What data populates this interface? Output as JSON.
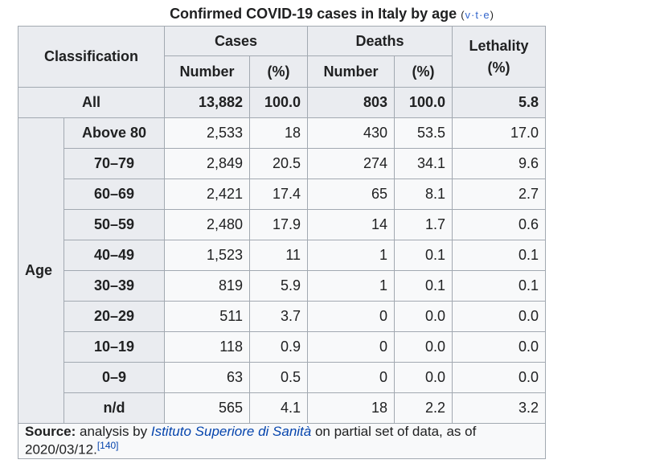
{
  "caption": {
    "title": "Confirmed COVID-19 cases in Italy by age",
    "nav_open": "(",
    "nav_v": "v",
    "nav_t": "t",
    "nav_e": "e",
    "nav_dot": "·",
    "nav_close": ")"
  },
  "headers": {
    "classification": "Classification",
    "cases": "Cases",
    "deaths": "Deaths",
    "lethality": "Lethality",
    "lethality_unit": "(%)",
    "number": "Number",
    "pct": "(%)"
  },
  "all_row": {
    "label": "All",
    "cases_number": "13,882",
    "cases_pct": "100.0",
    "deaths_number": "803",
    "deaths_pct": "100.0",
    "lethality": "5.8"
  },
  "age_label": "Age",
  "rows": [
    {
      "group": "Above 80",
      "cases_number": "2,533",
      "cases_pct": "18",
      "deaths_number": "430",
      "deaths_pct": "53.5",
      "lethality": "17.0"
    },
    {
      "group": "70–79",
      "cases_number": "2,849",
      "cases_pct": "20.5",
      "deaths_number": "274",
      "deaths_pct": "34.1",
      "lethality": "9.6"
    },
    {
      "group": "60–69",
      "cases_number": "2,421",
      "cases_pct": "17.4",
      "deaths_number": "65",
      "deaths_pct": "8.1",
      "lethality": "2.7"
    },
    {
      "group": "50–59",
      "cases_number": "2,480",
      "cases_pct": "17.9",
      "deaths_number": "14",
      "deaths_pct": "1.7",
      "lethality": "0.6"
    },
    {
      "group": "40–49",
      "cases_number": "1,523",
      "cases_pct": "11",
      "deaths_number": "1",
      "deaths_pct": "0.1",
      "lethality": "0.1"
    },
    {
      "group": "30–39",
      "cases_number": "819",
      "cases_pct": "5.9",
      "deaths_number": "1",
      "deaths_pct": "0.1",
      "lethality": "0.1"
    },
    {
      "group": "20–29",
      "cases_number": "511",
      "cases_pct": "3.7",
      "deaths_number": "0",
      "deaths_pct": "0.0",
      "lethality": "0.0"
    },
    {
      "group": "10–19",
      "cases_number": "118",
      "cases_pct": "0.9",
      "deaths_number": "0",
      "deaths_pct": "0.0",
      "lethality": "0.0"
    },
    {
      "group": "0–9",
      "cases_number": "63",
      "cases_pct": "0.5",
      "deaths_number": "0",
      "deaths_pct": "0.0",
      "lethality": "0.0"
    },
    {
      "group": "n/d",
      "cases_number": "565",
      "cases_pct": "4.1",
      "deaths_number": "18",
      "deaths_pct": "2.2",
      "lethality": "3.2"
    }
  ],
  "source": {
    "label": "Source:",
    "text_before": " analysis by ",
    "link": "Istituto Superiore di Sanità",
    "text_after": " on partial set of data, as of 2020/03/12.",
    "ref": "[140]"
  }
}
